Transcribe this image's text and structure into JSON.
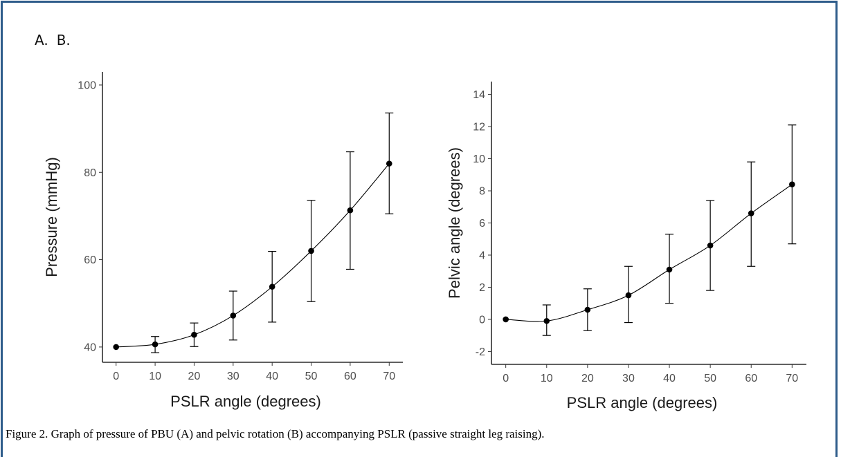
{
  "panel_labels": [
    "A.",
    "B."
  ],
  "caption": "Figure 2.  Graph of pressure of PBU (A) and pelvic rotation (B) accompanying PSLR (passive straight leg raising).",
  "chart_data": [
    {
      "type": "line",
      "panel": "A.",
      "xlabel": "PSLR angle (degrees)",
      "ylabel": "Pressure (mmHg)",
      "x": [
        0,
        10,
        20,
        30,
        40,
        50,
        60,
        70
      ],
      "x_ticks": [
        0,
        10,
        20,
        30,
        40,
        50,
        60,
        70
      ],
      "y_ticks": [
        40,
        60,
        80,
        100
      ],
      "xlim": [
        -3.5,
        73.5
      ],
      "ylim": [
        36.5,
        103
      ],
      "series": [
        {
          "values": [
            40.0,
            40.6,
            42.8,
            47.2,
            53.8,
            62.0,
            71.3,
            82.0
          ],
          "error_low": [
            40.0,
            38.7,
            40.1,
            41.6,
            45.7,
            50.4,
            57.8,
            70.5
          ],
          "error_high": [
            40.0,
            42.4,
            45.5,
            52.8,
            61.9,
            73.6,
            84.7,
            93.6
          ]
        }
      ],
      "grid": false,
      "marker": "filled-circle",
      "color": "#000000"
    },
    {
      "type": "line",
      "panel": "B.",
      "xlabel": "PSLR angle (degrees)",
      "ylabel": "Pelvic angle (degrees)",
      "x": [
        0,
        10,
        20,
        30,
        40,
        50,
        60,
        70
      ],
      "x_ticks": [
        0,
        10,
        20,
        30,
        40,
        50,
        60,
        70
      ],
      "y_ticks": [
        -2,
        0,
        2,
        4,
        6,
        8,
        10,
        12,
        14
      ],
      "xlim": [
        -3.5,
        73.5
      ],
      "ylim": [
        -2.8,
        14.8
      ],
      "series": [
        {
          "values": [
            0.0,
            -0.1,
            0.6,
            1.5,
            3.1,
            4.6,
            6.6,
            8.4
          ],
          "error_low": [
            0.0,
            -1.0,
            -0.7,
            -0.2,
            1.0,
            1.8,
            3.3,
            4.7
          ],
          "error_high": [
            0.0,
            0.9,
            1.9,
            3.3,
            5.3,
            7.4,
            9.8,
            12.1
          ]
        }
      ],
      "grid": false,
      "marker": "filled-circle",
      "color": "#000000"
    }
  ]
}
